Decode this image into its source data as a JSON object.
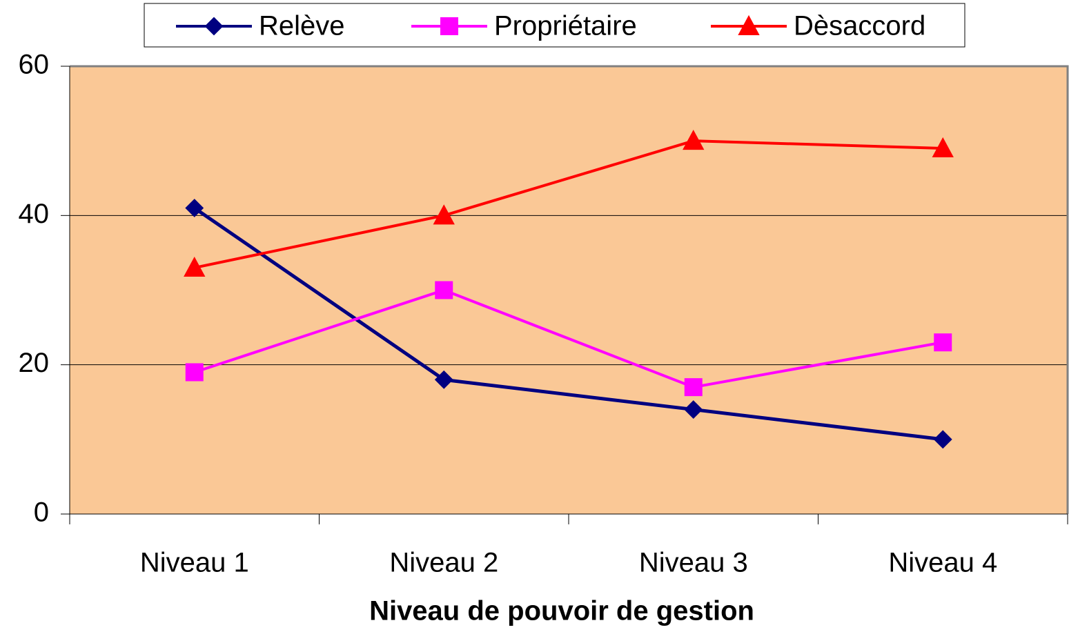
{
  "chart_data": {
    "type": "line",
    "x_label": "Niveau de pouvoir de gestion",
    "categories": [
      "Niveau 1",
      "Niveau 2",
      "Niveau 3",
      "Niveau 4"
    ],
    "series": [
      {
        "name": "Relève",
        "color": "#000080",
        "marker": "diamond",
        "values": [
          41,
          18,
          14,
          10
        ]
      },
      {
        "name": "Propriétaire",
        "color": "#FF00FF",
        "marker": "square",
        "values": [
          19,
          30,
          17,
          23
        ]
      },
      {
        "name": "Dèsaccord",
        "color": "#FF0000",
        "marker": "triangle",
        "values": [
          33,
          40,
          50,
          49
        ]
      }
    ],
    "ylim": [
      0,
      60
    ],
    "yticks": [
      0,
      20,
      40,
      60
    ],
    "grid": true,
    "legend": "top",
    "plot_background": "#FAC896"
  }
}
